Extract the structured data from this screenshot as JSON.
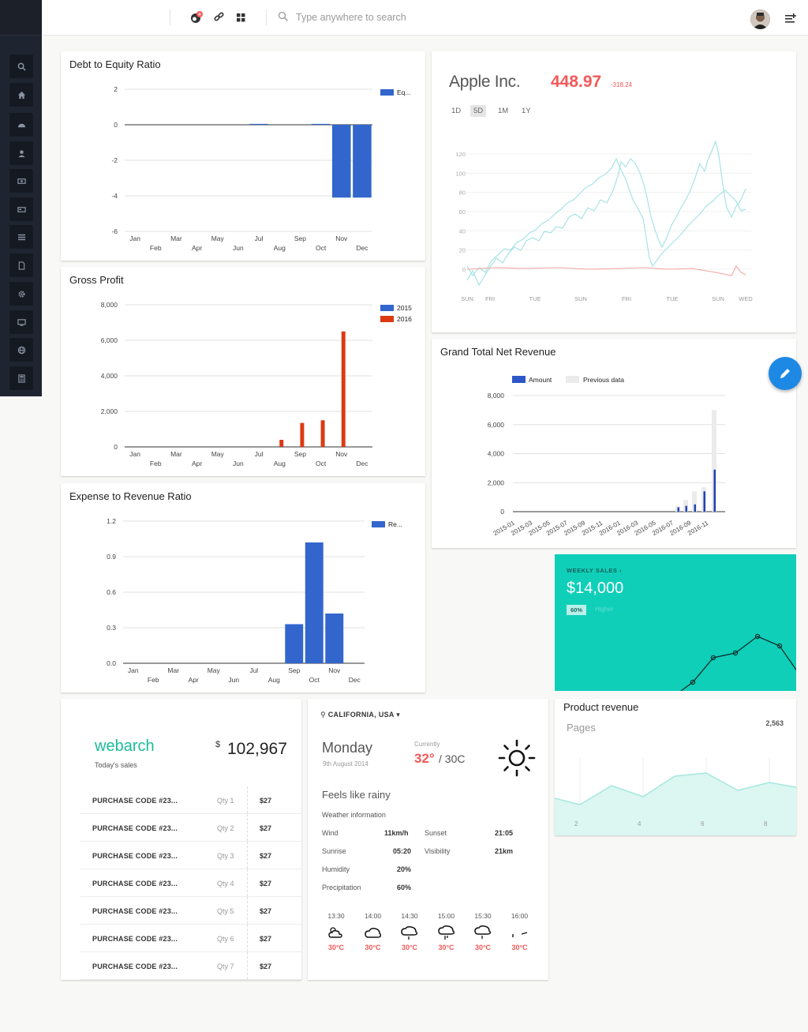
{
  "header": {
    "search_placeholder": "Type anywhere to search"
  },
  "sidebar": {
    "icons": [
      "search-icon",
      "home-icon",
      "dashboard-icon",
      "user-icon",
      "money-icon",
      "card-icon",
      "list-icon",
      "pdf-icon",
      "gear-icon",
      "monitor-icon",
      "globe-icon",
      "calculator-icon"
    ]
  },
  "debt_card": {
    "title": "Debt to Equity Ratio",
    "chart_data": {
      "type": "bar",
      "categories": [
        "Jan",
        "Feb",
        "Mar",
        "Apr",
        "May",
        "Jun",
        "Jul",
        "Aug",
        "Sep",
        "Oct",
        "Nov",
        "Dec"
      ],
      "series": [
        {
          "name": "Eq...",
          "values": [
            0,
            0,
            0,
            0,
            0,
            0,
            0.05,
            0,
            0,
            0.05,
            -4.1,
            -4.1
          ]
        }
      ],
      "ylim": [
        -6,
        2
      ],
      "yticks": [
        "2",
        "0",
        "-2",
        "-4",
        "-6"
      ],
      "color": "#3366cc"
    }
  },
  "gross_card": {
    "title": "Gross Profit",
    "chart_data": {
      "type": "bar",
      "categories": [
        "Jan",
        "Feb",
        "Mar",
        "Apr",
        "May",
        "Jun",
        "Jul",
        "Aug",
        "Sep",
        "Oct",
        "Nov",
        "Dec"
      ],
      "series": [
        {
          "name": "2015",
          "values": [
            0,
            0,
            0,
            0,
            0,
            0,
            0,
            0,
            0,
            0,
            0,
            0
          ],
          "color": "#3366cc"
        },
        {
          "name": "2016",
          "values": [
            0,
            0,
            0,
            0,
            0,
            0,
            0,
            400,
            1350,
            1500,
            6500,
            0
          ],
          "color": "#dc3912"
        }
      ],
      "ylim": [
        0,
        8000
      ],
      "yticks": [
        "8,000",
        "6,000",
        "4,000",
        "2,000",
        "0"
      ]
    }
  },
  "expense_card": {
    "title": "Expense to Revenue Ratio",
    "chart_data": {
      "type": "bar",
      "categories": [
        "Jan",
        "Feb",
        "Mar",
        "Apr",
        "May",
        "Jun",
        "Jul",
        "Aug",
        "Sep",
        "Oct",
        "Nov",
        "Dec"
      ],
      "series": [
        {
          "name": "Re...",
          "values": [
            0,
            0,
            0,
            0,
            0,
            0,
            0,
            0,
            0.33,
            1.02,
            0.42,
            0
          ]
        }
      ],
      "ylim": [
        0,
        1.2
      ],
      "yticks": [
        "1.2",
        "0.9",
        "0.6",
        "0.3",
        "0.0"
      ],
      "color": "#3366cc"
    }
  },
  "apple_card": {
    "name": "Apple Inc.",
    "price": "448.97",
    "change": "-318.24",
    "ranges": [
      "1D",
      "5D",
      "1M",
      "1Y"
    ],
    "active_range": "5D",
    "chart_data": {
      "type": "line",
      "x_ticks": [
        "SUN",
        "FRI",
        "TUE",
        "SUN",
        "FRI",
        "TUE",
        "SUN",
        "WED"
      ],
      "y_ticks": [
        "120",
        "100",
        "80",
        "60",
        "40",
        "20",
        "0"
      ],
      "ylim": [
        -20,
        130
      ]
    }
  },
  "grand_card": {
    "title": "Grand Total Net Revenue",
    "chart_data": {
      "type": "bar",
      "legend": [
        "Amount",
        "Previous data"
      ],
      "x_ticks": [
        "2015-01",
        "2015-03",
        "2015-05",
        "2015-07",
        "2015-09",
        "2015-11",
        "2016-01",
        "2016-03",
        "2016-05",
        "2016-07",
        "2016-09",
        "2016-11"
      ],
      "y_ticks": [
        "8,000",
        "6,000",
        "4,000",
        "2,000",
        "0"
      ],
      "ylim": [
        0,
        8000
      ]
    }
  },
  "weekly": {
    "label": "WEEKLY SALES",
    "amount": "$14,000",
    "percent": "60%",
    "higher": "Higher"
  },
  "product_revenue": {
    "title": "Product revenue",
    "subtitle": "Pages",
    "value": "2,563",
    "x_ticks": [
      "2",
      "4",
      "6",
      "8"
    ]
  },
  "webarch": {
    "brand": "webarch",
    "subtitle": "Today's sales",
    "currency": "$",
    "amount": "102,967",
    "rows": [
      {
        "code": "PURCHASE CODE #23...",
        "qty": "Qty 1",
        "price": "$27"
      },
      {
        "code": "PURCHASE CODE #23...",
        "qty": "Qty 2",
        "price": "$27"
      },
      {
        "code": "PURCHASE CODE #23...",
        "qty": "Qty 3",
        "price": "$27"
      },
      {
        "code": "PURCHASE CODE #23...",
        "qty": "Qty 4",
        "price": "$27"
      },
      {
        "code": "PURCHASE CODE #23...",
        "qty": "Qty 5",
        "price": "$27"
      },
      {
        "code": "PURCHASE CODE #23...",
        "qty": "Qty 6",
        "price": "$27"
      },
      {
        "code": "PURCHASE CODE #23...",
        "qty": "Qty 7",
        "price": "$27"
      }
    ]
  },
  "weather": {
    "location": "CALIFORNIA, USA",
    "day": "Monday",
    "date": "9th August 2014",
    "currently_label": "Currently",
    "temp": "32°",
    "range": "/ 30C",
    "feels": "Feels like rainy",
    "info_label": "Weather information",
    "wind_label": "Wind",
    "wind": "11km/h",
    "sunset_label": "Sunset",
    "sunset": "21:05",
    "sunrise_label": "Sunrise",
    "sunrise": "05:20",
    "visibility_label": "Visibility",
    "visibility": "21km",
    "humidity_label": "Humidity",
    "humidity": "20%",
    "precip_label": "Precipitation",
    "precip": "60%",
    "hours": [
      {
        "time": "13:30",
        "temp": "30°C"
      },
      {
        "time": "14:00",
        "temp": "30°C"
      },
      {
        "time": "14:30",
        "temp": "30°C"
      },
      {
        "time": "15:00",
        "temp": "30°C"
      },
      {
        "time": "15:30",
        "temp": "30°C"
      },
      {
        "time": "16:00",
        "temp": "30°C"
      }
    ]
  }
}
